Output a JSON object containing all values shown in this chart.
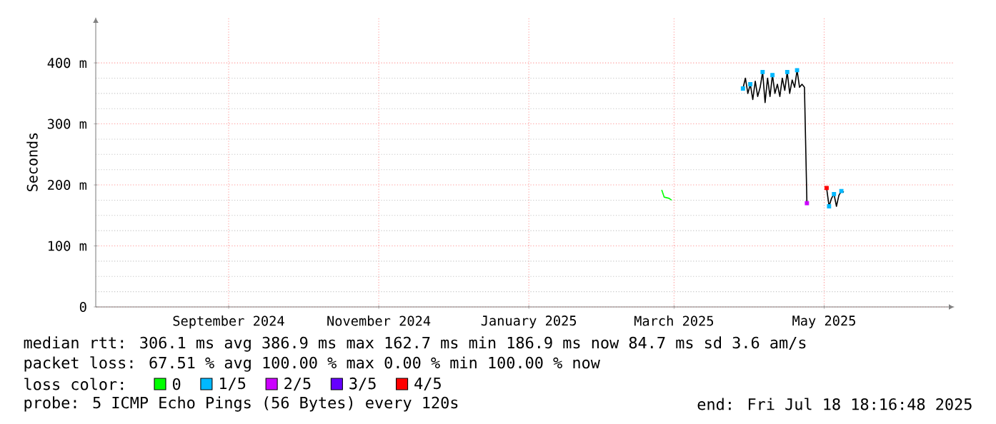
{
  "chart_data": {
    "type": "line",
    "ylabel": "Seconds",
    "xlim": [
      "2024-07-23",
      "2025-07-07"
    ],
    "xticks": [
      {
        "value": "2024-09-15",
        "label": "September 2024"
      },
      {
        "value": "2024-11-15",
        "label": "November 2024"
      },
      {
        "value": "2025-01-15",
        "label": "January 2025"
      },
      {
        "value": "2025-03-15",
        "label": "March 2025"
      },
      {
        "value": "2025-05-15",
        "label": "May 2025"
      }
    ],
    "ylim": [
      0,
      475
    ],
    "yticks": [
      0,
      {
        "value": 100,
        "label": "100 m"
      },
      {
        "value": 200,
        "label": "200 m"
      },
      {
        "value": 300,
        "label": "300 m"
      },
      {
        "value": 400,
        "label": "400 m"
      }
    ],
    "grid": true,
    "legend": "bottom",
    "legend_title": "loss color:",
    "series": [
      {
        "color": "#000000",
        "x": [
          "2025-04-12",
          "2025-04-13",
          "2025-04-14",
          "2025-04-15",
          "2025-04-16",
          "2025-04-17",
          "2025-04-18",
          "2025-04-19",
          "2025-04-20",
          "2025-04-21",
          "2025-04-22",
          "2025-04-23",
          "2025-04-24",
          "2025-04-25",
          "2025-04-26",
          "2025-04-27",
          "2025-04-28",
          "2025-04-29",
          "2025-04-30",
          "2025-05-01",
          "2025-05-02",
          "2025-05-03",
          "2025-05-04",
          "2025-05-05",
          "2025-05-06",
          "2025-05-07",
          "2025-05-08",
          "2025-05-12",
          "2025-05-16",
          "2025-05-17",
          "2025-05-18",
          "2025-05-19",
          "2025-05-20",
          "2025-05-21",
          "2025-05-22",
          "2025-05-23"
        ],
        "values": [
          358,
          375,
          350,
          365,
          340,
          370,
          345,
          360,
          385,
          335,
          375,
          345,
          380,
          350,
          365,
          345,
          375,
          355,
          385,
          350,
          372,
          360,
          388,
          360,
          365,
          360,
          170,
          null,
          195,
          165,
          178,
          185,
          165,
          183,
          190,
          188
        ]
      },
      {
        "name": "0",
        "type": "line",
        "color": "#00ff00",
        "x": [
          "2025-03-10",
          "2025-03-11",
          "2025-03-13",
          "2025-03-14"
        ],
        "values": [
          192,
          180,
          178,
          175
        ]
      },
      {
        "name": "1/5",
        "type": "scatter",
        "color": "#00b8ff",
        "x": [
          "2025-04-12",
          "2025-04-15",
          "2025-04-20",
          "2025-04-24",
          "2025-04-30",
          "2025-05-04",
          "2025-05-17",
          "2025-05-19",
          "2025-05-22"
        ],
        "values": [
          358,
          365,
          385,
          380,
          385,
          388,
          165,
          185,
          190
        ]
      },
      {
        "name": "2/5",
        "type": "scatter",
        "color": "#cc00ff",
        "x": [
          "2025-05-08"
        ],
        "values": [
          170
        ]
      },
      {
        "name": "3/5",
        "type": "scatter",
        "color": "#6600ff"
      },
      {
        "name": "4/5",
        "type": "scatter",
        "color": "#ff0000",
        "x": [
          "2025-05-16"
        ],
        "values": [
          195
        ]
      }
    ],
    "annotations": [
      "median rtt:  306.1 ms avg  386.9 ms max  162.7 ms min  186.9 ms now  84.7 ms sd  3.6   am/s",
      "packet loss: 67.51 % avg  100.00 % max  0.00 % min  100.00 % now",
      "probe:       5 ICMP Echo Pings (56 Bytes) every 120s",
      "end: Fri Jul 18 18:16:48 2025"
    ]
  }
}
